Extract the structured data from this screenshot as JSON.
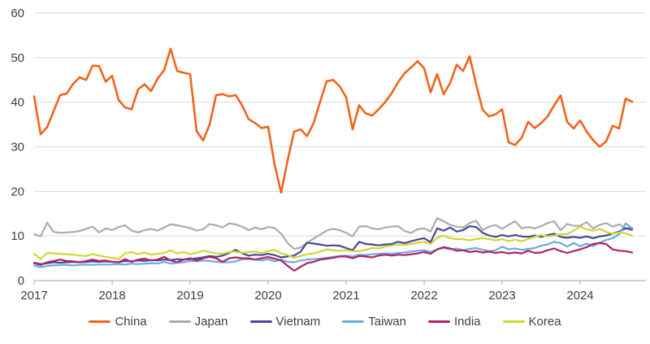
{
  "chart_data": {
    "type": "line",
    "title": "",
    "x_unit": "month",
    "x_start": "2017-01",
    "x_end": "2024-09",
    "x_tick_labels": [
      "2017",
      "2018",
      "2019",
      "2020",
      "2021",
      "2022",
      "2023",
      "2024"
    ],
    "y_ticks": [
      0,
      10,
      20,
      30,
      40,
      50,
      60
    ],
    "ylim": [
      0,
      60
    ],
    "grid": "horizontal",
    "legend_position": "bottom",
    "axis_color": "#bfbfbf",
    "grid_color": "#d9d9d9",
    "text_color": "#404040",
    "series": [
      {
        "name": "China",
        "color": "#f26419",
        "values": [
          41.3,
          32.8,
          34.4,
          38.0,
          41.6,
          41.9,
          44.1,
          45.6,
          45.0,
          48.2,
          48.1,
          44.6,
          45.9,
          40.5,
          38.8,
          38.4,
          42.9,
          44.0,
          42.5,
          45.3,
          47.2,
          52.0,
          47.0,
          46.6,
          46.3,
          33.5,
          31.4,
          35.0,
          41.6,
          41.8,
          41.3,
          41.6,
          39.3,
          36.2,
          35.3,
          34.2,
          34.5,
          26.0,
          19.7,
          27.0,
          33.4,
          33.9,
          32.4,
          35.3,
          40.1,
          44.7,
          45.0,
          43.6,
          41.1,
          33.9,
          39.3,
          37.5,
          37.0,
          38.4,
          40.0,
          42.0,
          44.5,
          46.5,
          47.8,
          49.2,
          47.6,
          42.2,
          46.3,
          41.8,
          44.3,
          48.4,
          47.0,
          50.3,
          44.0,
          38.3,
          36.8,
          37.3,
          38.4,
          31.0,
          30.4,
          32.0,
          35.6,
          34.2,
          35.3,
          36.8,
          39.3,
          41.5,
          35.6,
          34.1,
          35.9,
          33.4,
          31.5,
          30.0,
          31.2,
          34.7,
          34.1,
          40.8,
          40.1
        ]
      },
      {
        "name": "Japan",
        "color": "#ababab",
        "values": [
          10.4,
          9.9,
          13.0,
          10.9,
          10.7,
          10.8,
          10.9,
          11.1,
          11.6,
          12.1,
          10.8,
          11.7,
          11.3,
          12.0,
          12.4,
          11.2,
          10.8,
          11.3,
          11.6,
          11.2,
          11.9,
          12.6,
          12.4,
          12.1,
          11.8,
          11.2,
          11.5,
          12.7,
          12.4,
          11.9,
          12.8,
          12.6,
          12.1,
          11.3,
          11.9,
          11.5,
          12.0,
          11.8,
          10.5,
          8.4,
          7.1,
          7.4,
          8.5,
          9.4,
          10.3,
          11.2,
          11.6,
          11.3,
          10.7,
          9.9,
          12.1,
          12.2,
          11.7,
          11.5,
          11.9,
          12.1,
          12.2,
          11.1,
          10.7,
          11.5,
          11.7,
          11.0,
          14.0,
          13.3,
          12.5,
          12.1,
          11.9,
          12.9,
          13.4,
          11.3,
          12.1,
          12.5,
          11.6,
          12.5,
          13.3,
          11.7,
          12.0,
          11.7,
          12.2,
          12.9,
          13.3,
          11.3,
          12.7,
          12.3,
          12.3,
          13.1,
          11.7,
          12.5,
          12.9,
          12.1,
          12.6,
          11.8,
          11.8
        ]
      },
      {
        "name": "Vietnam",
        "color": "#4a4797",
        "values": [
          4.0,
          3.7,
          3.9,
          4.1,
          4.0,
          4.1,
          4.2,
          4.1,
          4.2,
          4.3,
          4.2,
          4.3,
          4.2,
          4.1,
          4.4,
          4.3,
          4.5,
          4.4,
          4.6,
          4.5,
          4.7,
          4.6,
          4.8,
          4.7,
          4.8,
          5.0,
          5.2,
          5.5,
          5.3,
          5.6,
          6.2,
          6.9,
          6.1,
          5.6,
          5.8,
          5.7,
          6.0,
          5.7,
          5.2,
          5.4,
          5.6,
          6.5,
          8.5,
          8.3,
          8.1,
          7.8,
          7.9,
          7.8,
          7.3,
          6.8,
          8.7,
          8.2,
          8.1,
          7.9,
          8.1,
          8.2,
          8.7,
          8.4,
          8.8,
          9.2,
          9.5,
          8.6,
          11.7,
          11.2,
          11.9,
          11.0,
          11.3,
          12.2,
          12.0,
          10.7,
          10.1,
          9.8,
          10.2,
          9.9,
          10.2,
          9.9,
          9.8,
          10.1,
          9.8,
          10.2,
          10.5,
          9.8,
          9.6,
          9.8,
          9.6,
          9.9,
          9.5,
          9.9,
          10.1,
          10.5,
          11.0,
          11.7,
          11.4
        ]
      },
      {
        "name": "Taiwan",
        "color": "#6aabdf",
        "values": [
          3.4,
          3.0,
          3.3,
          3.4,
          3.5,
          3.5,
          3.4,
          3.5,
          3.6,
          3.5,
          3.6,
          3.6,
          3.6,
          3.7,
          3.6,
          3.8,
          3.7,
          3.8,
          3.9,
          3.8,
          4.2,
          3.8,
          4.0,
          4.1,
          4.4,
          4.3,
          4.5,
          4.4,
          4.2,
          4.1,
          4.1,
          4.3,
          4.8,
          4.8,
          4.7,
          4.5,
          4.8,
          4.3,
          4.7,
          4.2,
          4.1,
          4.5,
          4.7,
          4.8,
          4.9,
          5.1,
          5.3,
          5.5,
          5.6,
          5.4,
          5.8,
          5.7,
          5.9,
          6.0,
          6.1,
          6.0,
          6.2,
          6.3,
          6.5,
          6.7,
          6.8,
          6.4,
          7.0,
          7.3,
          7.0,
          7.2,
          6.8,
          7.1,
          7.3,
          6.9,
          6.6,
          6.8,
          7.6,
          7.0,
          7.2,
          6.9,
          7.1,
          7.3,
          7.8,
          8.1,
          8.7,
          8.4,
          7.6,
          8.4,
          7.7,
          8.3,
          7.7,
          8.5,
          9.1,
          9.5,
          10.4,
          12.8,
          11.7
        ]
      },
      {
        "name": "India",
        "color": "#b02268",
        "values": [
          3.9,
          3.5,
          4.1,
          4.4,
          4.7,
          4.4,
          4.3,
          4.1,
          4.4,
          4.7,
          4.4,
          4.5,
          4.2,
          4.1,
          4.8,
          4.2,
          4.7,
          4.9,
          4.5,
          4.7,
          5.3,
          4.5,
          4.1,
          4.7,
          5.0,
          4.5,
          5.0,
          5.3,
          5.0,
          4.2,
          5.0,
          5.2,
          5.0,
          5.0,
          4.7,
          5.0,
          5.3,
          4.9,
          4.5,
          3.3,
          2.2,
          3.1,
          3.9,
          4.2,
          4.7,
          4.9,
          5.1,
          5.4,
          5.4,
          5.0,
          5.5,
          5.4,
          5.2,
          5.6,
          5.8,
          5.6,
          5.8,
          5.7,
          5.9,
          6.1,
          6.4,
          6.0,
          7.0,
          7.5,
          7.2,
          6.7,
          6.8,
          6.4,
          6.6,
          6.3,
          6.5,
          6.2,
          6.4,
          6.1,
          6.3,
          6.1,
          6.7,
          6.2,
          6.3,
          6.8,
          7.2,
          6.6,
          6.2,
          6.6,
          7.0,
          7.5,
          8.2,
          8.4,
          8.2,
          7.0,
          6.7,
          6.6,
          6.3
        ]
      },
      {
        "name": "Korea",
        "color": "#d2d631",
        "values": [
          6.0,
          4.8,
          6.2,
          6.1,
          6.0,
          5.9,
          5.8,
          5.6,
          5.5,
          5.9,
          5.6,
          5.3,
          5.1,
          4.8,
          6.1,
          6.4,
          5.9,
          6.3,
          5.8,
          6.0,
          6.2,
          6.8,
          6.1,
          6.4,
          5.9,
          6.2,
          6.7,
          6.4,
          6.1,
          6.0,
          6.4,
          6.5,
          6.2,
          6.4,
          6.5,
          6.2,
          6.6,
          6.9,
          6.1,
          5.7,
          5.1,
          5.5,
          5.9,
          6.1,
          6.5,
          7.0,
          6.8,
          6.7,
          6.8,
          6.6,
          6.6,
          6.9,
          7.3,
          7.2,
          7.6,
          7.8,
          8.1,
          8.0,
          8.2,
          8.5,
          8.7,
          8.2,
          9.6,
          10.1,
          9.5,
          9.3,
          9.3,
          9.0,
          9.3,
          9.5,
          9.3,
          9.0,
          9.3,
          8.8,
          9.2,
          8.8,
          9.3,
          9.8,
          10.2,
          9.9,
          10.1,
          10.4,
          10.4,
          11.2,
          12.1,
          11.5,
          11.2,
          11.6,
          10.9,
          10.5,
          10.8,
          10.6,
          10.1
        ]
      }
    ]
  }
}
